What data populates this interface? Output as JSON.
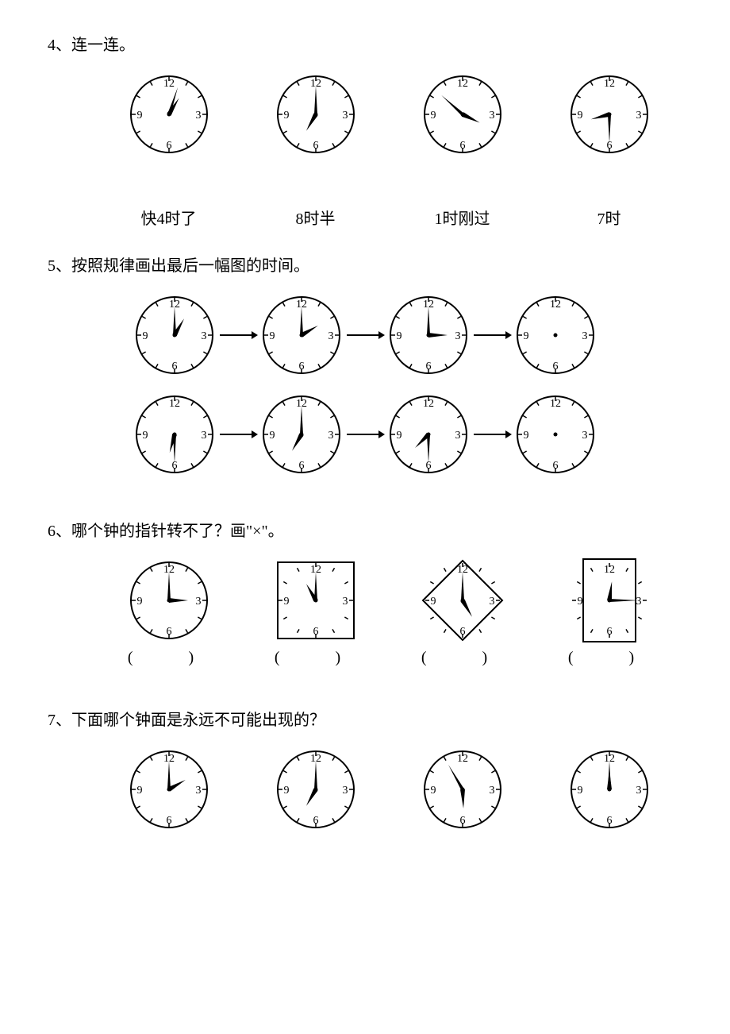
{
  "page": {
    "background": "#ffffff",
    "text_color": "#000000",
    "font_family": "SimSun"
  },
  "clock_style": {
    "radius": 48,
    "stroke": "#000000",
    "stroke_width": 2,
    "num_fontsize": 14,
    "hour_hand_len": 24,
    "minute_hand_len": 36,
    "hour_hand_width": 6,
    "minute_hand_width": 4,
    "tick_len": 6
  },
  "q4": {
    "title": "4、连一连。",
    "clocks": [
      {
        "hour": 1,
        "minute": 3
      },
      {
        "hour": 7,
        "minute": 0
      },
      {
        "hour": 3,
        "minute": 52
      },
      {
        "hour": 8,
        "minute": 30
      }
    ],
    "labels": [
      "快4时了",
      "8时半",
      "1时刚过",
      "7时"
    ]
  },
  "q5": {
    "title": "5、按照规律画出最后一幅图的时间。",
    "row1": [
      {
        "hour": 1,
        "minute": 0
      },
      {
        "hour": 2,
        "minute": 0
      },
      {
        "hour": 3,
        "minute": 0
      },
      {
        "blank": true
      }
    ],
    "row2": [
      {
        "hour": 6,
        "minute": 30
      },
      {
        "hour": 7,
        "minute": 0
      },
      {
        "hour": 7,
        "minute": 30
      },
      {
        "blank": true
      }
    ]
  },
  "q6": {
    "title": "6、哪个钟的指针转不了？画\"×\"。",
    "clocks": [
      {
        "shape": "circle",
        "hour": 3,
        "minute": 0
      },
      {
        "shape": "square",
        "hour": 11,
        "minute": 0
      },
      {
        "shape": "diamond",
        "hour": 5,
        "minute": 0
      },
      {
        "shape": "tall_rect",
        "hour": 12,
        "minute": 15
      }
    ],
    "paren": "(    )"
  },
  "q7": {
    "title": "7、下面哪个钟面是永远不可能出现的？",
    "clocks": [
      {
        "hour": 2,
        "minute": 0
      },
      {
        "hour": 7,
        "minute": 0
      },
      {
        "hour": 5,
        "minute": 55
      },
      {
        "hour": 12,
        "minute": 0
      }
    ]
  }
}
